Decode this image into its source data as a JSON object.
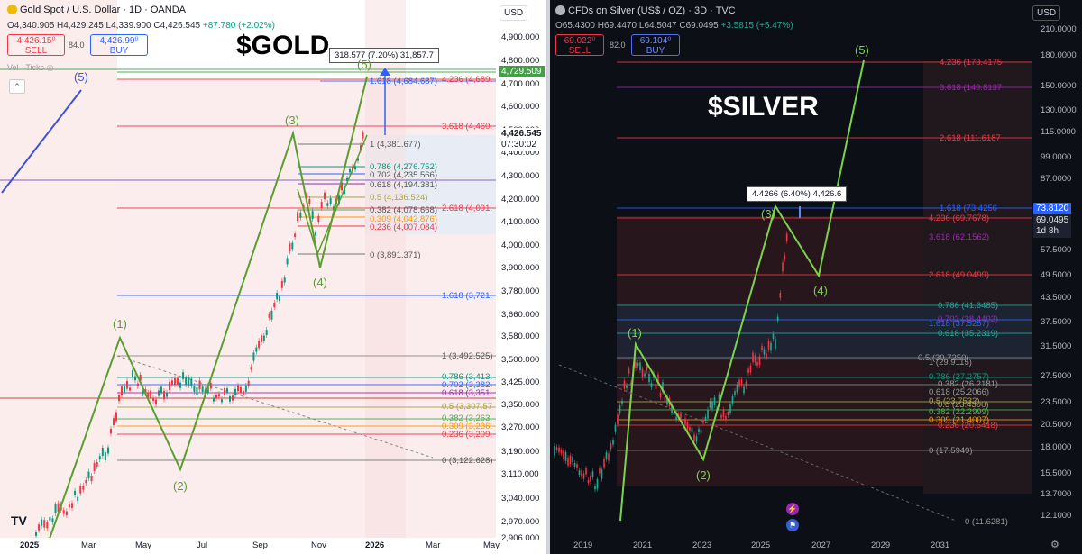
{
  "gold": {
    "title": "Gold Spot / U.S. Dollar · 1D · OANDA",
    "ohlc": {
      "o": "4,340.905",
      "h": "4,429.245",
      "l": "4,339.900",
      "c": "4,426.545",
      "chg": "+87.780 (+2.02%)"
    },
    "sell": {
      "price": "4,426.15⁰",
      "label": "SELL"
    },
    "spread": "84.0",
    "buy": {
      "price": "4,426.99⁰",
      "label": "BUY"
    },
    "vol_label": "Vol · Ticks",
    "big_label": "$GOLD",
    "currency": "USD",
    "price_axis": [
      "4,900.000",
      "4,800.000",
      "4,700.000",
      "4,600.000",
      "4,500.000",
      "4,400.000",
      "4,300.000",
      "4,200.000",
      "4,100.000",
      "4,000.000",
      "3,900.000",
      "3,780.000",
      "3,660.000",
      "3,580.000",
      "3,500.000",
      "3,425.000",
      "3,350.000",
      "3,270.000",
      "3,190.000",
      "3,110.000",
      "3,040.000",
      "2,970.000",
      "2,906.000"
    ],
    "current_price": "4,426.545",
    "countdown": "07:30:02",
    "target_tag": "4,729.509",
    "time_axis": [
      "2025",
      "Mar",
      "May",
      "Jul",
      "Sep",
      "Nov",
      "2026",
      "Mar",
      "May"
    ],
    "measure": "318.577 (7.20%) 31,857.7",
    "waves": [
      "(1)",
      "(2)",
      "(3)",
      "(4)",
      "(5)",
      "(5)"
    ],
    "fib_right": [
      "4.236 (4,689.",
      "1.618 (4,684.687)",
      "3.618 (4,460.",
      "2.618 (4,091.",
      "1.618 (3,721.",
      "1 (3,492.525)",
      "0.786 (3,413.",
      "0.702 (3,382.",
      "0.618 (3,351.",
      "0.5 (3,307.57",
      "0.382 (3,263.",
      "0.309 (3,236.",
      "0.236 (3,209.",
      "0 (3,122.628)"
    ],
    "fib_inner": [
      "1 (4,381.677)",
      "0.786 (4,276.752)",
      "0.702 (4,235.566)",
      "0.618 (4,194.381)",
      "0.5 (4,136.524)",
      "0.382 (4,078.668)",
      "0.309 (4,042.876)",
      "0.236 (4,007.084)",
      "0 (3,891.371)"
    ],
    "logo": "TV"
  },
  "silver": {
    "title": "CFDs on Silver (US$ / OZ) · 3D · TVC",
    "ohlc": {
      "o": "65.4300",
      "h": "69.4470",
      "l": "64.5047",
      "c": "69.0495",
      "chg": "+3.5815 (+5.47%)"
    },
    "sell": {
      "price": "69.022⁰",
      "label": "SELL"
    },
    "spread": "82.0",
    "buy": {
      "price": "69.104⁰",
      "label": "BUY"
    },
    "big_label": "$SILVER",
    "currency": "USD",
    "price_axis": [
      "210.0000",
      "180.0000",
      "150.0000",
      "130.0000",
      "115.0000",
      "99.0000",
      "87.0000",
      "57.5000",
      "49.5000",
      "43.5000",
      "37.5000",
      "31.5000",
      "27.5000",
      "23.5000",
      "20.5000",
      "18.0000",
      "15.5000",
      "13.7000",
      "12.1000"
    ],
    "tag_a": "73.8120",
    "tag_b": "69.0495",
    "tag_b_sub": "1d 8h",
    "time_axis": [
      "2019",
      "2021",
      "2023",
      "2025",
      "2027",
      "2029",
      "2031"
    ],
    "callout": "4.4266 (6.40%) 4,426.6",
    "waves": [
      "(1)",
      "(2)",
      "(3)",
      "(4)",
      "(5)"
    ],
    "fib": [
      "4.236 (173.4175",
      "3.618 (149.8137",
      "2.618 (111.6187",
      "1.618 (73.4256",
      "4.236 (69.7678)",
      "3.618 (62.1562)",
      "2.618 (49.0499)",
      "0.786 (41.6485)",
      "0.702 (38.4402)",
      "1.618 (37.5257)",
      "0.618 (35.2319)",
      "0.5 (30.7250)",
      "1 (29.9115)",
      "0.786 (27.2757)",
      "0.382 (26.2181)",
      "0.618 (25.2066)",
      "0.5 (23.7532)",
      "0.5 (23.4300)",
      "0.382 (22.2999)",
      "0.309 (21.4007)",
      "0.236 (20.6418)",
      "0 (17.5949)",
      "0 (11.6281)"
    ]
  },
  "colors": {
    "fib_red": "#f23645",
    "fib_blue": "#2962ff",
    "wave_green": "#5a9e2f",
    "silver_green": "#7cd34a",
    "fib_teal": "#089981"
  }
}
